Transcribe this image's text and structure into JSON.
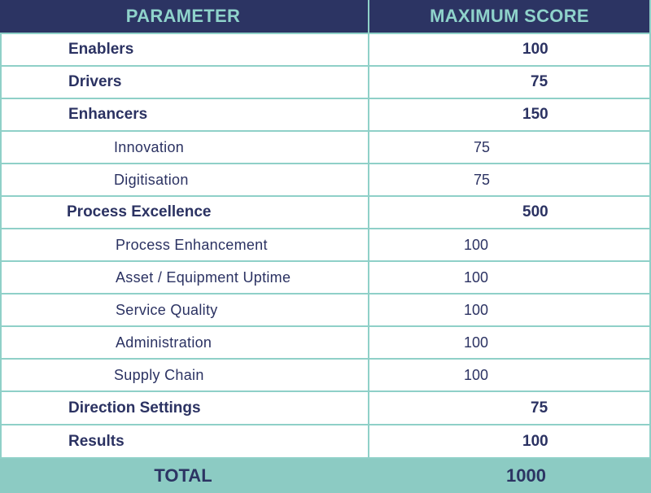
{
  "header": {
    "parameter_label": "PARAMETER",
    "score_label": "MAXIMUM SCORE"
  },
  "rows": [
    {
      "parameter": "Enablers",
      "score": "100",
      "level": "main"
    },
    {
      "parameter": "Drivers",
      "score": "75",
      "level": "main"
    },
    {
      "parameter": "Enhancers",
      "score": "150",
      "level": "main"
    },
    {
      "parameter": "Innovation",
      "score": "75",
      "level": "sub"
    },
    {
      "parameter": "Digitisation",
      "score": "75",
      "level": "sub"
    },
    {
      "parameter": "Process Excellence",
      "score": "500",
      "level": "main"
    },
    {
      "parameter": "Process Enhancement",
      "score": "100",
      "level": "sub"
    },
    {
      "parameter": "Asset / Equipment Uptime",
      "score": "100",
      "level": "sub"
    },
    {
      "parameter": "Service Quality",
      "score": "100",
      "level": "sub"
    },
    {
      "parameter": "Administration",
      "score": "100",
      "level": "sub"
    },
    {
      "parameter": "Supply Chain",
      "score": "100",
      "level": "sub"
    },
    {
      "parameter": "Direction Settings",
      "score": "75",
      "level": "main"
    },
    {
      "parameter": "Results",
      "score": "100",
      "level": "main"
    }
  ],
  "total": {
    "label": "TOTAL",
    "score": "1000"
  },
  "colors": {
    "header_bg": "#2c3463",
    "header_text": "#8fd3cb",
    "border": "#8fd0c8",
    "total_bg": "#8ccbc3",
    "text": "#2b3262"
  }
}
